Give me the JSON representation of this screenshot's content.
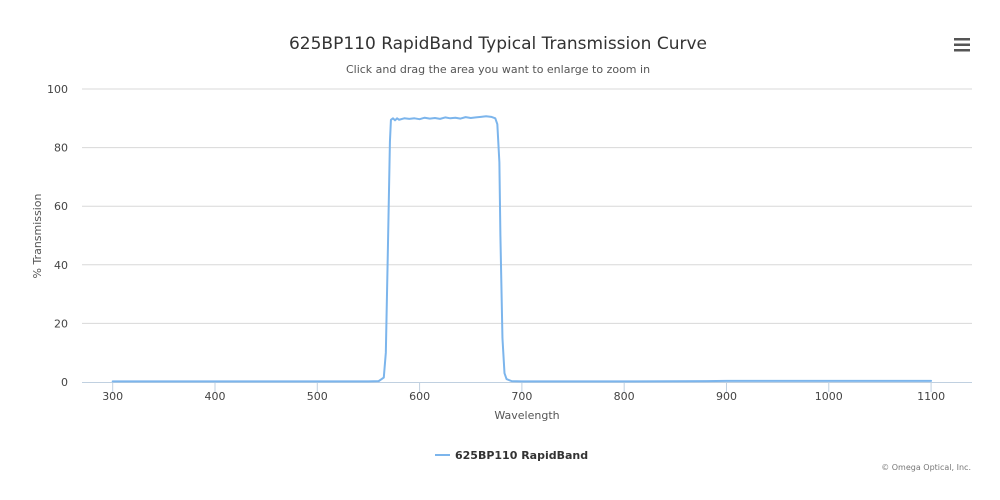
{
  "chart_data": {
    "type": "line",
    "title": "625BP110 RapidBand Typical Transmission Curve",
    "subtitle": "Click and drag the area you want to enlarge to zoom in",
    "xlabel": "Wavelength",
    "ylabel": "% Transmission",
    "xlim": [
      270,
      1140
    ],
    "ylim": [
      0,
      100
    ],
    "x_ticks": [
      300,
      400,
      500,
      600,
      700,
      800,
      900,
      1000,
      1100
    ],
    "y_ticks": [
      0,
      20,
      40,
      60,
      80,
      100
    ],
    "grid": "horizontal",
    "legend_position": "bottom-center",
    "series": [
      {
        "name": "625BP110 RapidBand",
        "color": "#7cb5ec",
        "x": [
          300,
          400,
          500,
          550,
          560,
          565,
          567,
          569,
          571,
          572,
          574,
          576,
          578,
          580,
          585,
          590,
          595,
          600,
          605,
          610,
          615,
          620,
          625,
          630,
          635,
          640,
          645,
          650,
          655,
          660,
          665,
          670,
          674,
          676,
          678,
          679,
          681,
          683,
          685,
          690,
          700,
          800,
          880,
          900,
          1000,
          1100
        ],
        "y": [
          0.2,
          0.2,
          0.2,
          0.2,
          0.3,
          1.5,
          10,
          45,
          82,
          89.5,
          90,
          89.3,
          90,
          89.5,
          90,
          89.8,
          90,
          89.7,
          90.2,
          89.9,
          90.1,
          89.8,
          90.3,
          90,
          90.2,
          89.9,
          90.4,
          90.1,
          90.3,
          90.5,
          90.7,
          90.5,
          90,
          88,
          75,
          50,
          15,
          3,
          1,
          0.3,
          0.2,
          0.2,
          0.3,
          0.4,
          0.4,
          0.4
        ]
      }
    ]
  },
  "legend": {
    "label": "625BP110 RapidBand"
  },
  "credit": "© Omega Optical, Inc.",
  "menu": {
    "icon": "hamburger-menu-icon"
  }
}
